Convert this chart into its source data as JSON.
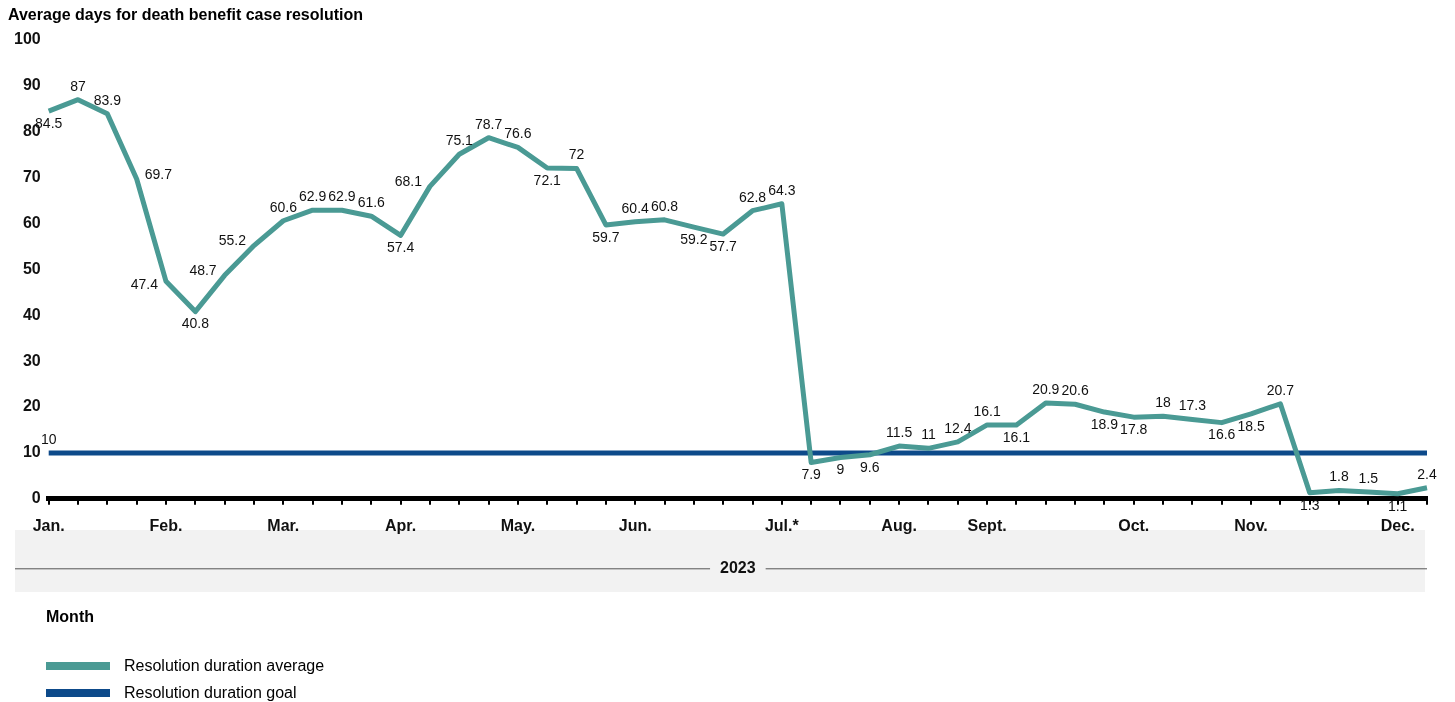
{
  "chart_data": {
    "type": "line",
    "title": "Average days for death benefit case resolution",
    "xlabel": "Month",
    "categories": [
      "Jan.",
      null,
      null,
      null,
      "Feb.",
      null,
      null,
      null,
      "Mar.",
      null,
      null,
      null,
      "Apr.",
      null,
      null,
      null,
      "May.",
      null,
      null,
      null,
      "Jun.",
      null,
      null,
      null,
      null,
      "Jul.*",
      null,
      null,
      null,
      "Aug.",
      null,
      null,
      "Sept.",
      null,
      null,
      null,
      null,
      "Oct.",
      null,
      null,
      null,
      "Nov.",
      null,
      null,
      null,
      null,
      "Dec.",
      null
    ],
    "series": [
      {
        "name": "Resolution duration average",
        "color": "#4a9a94",
        "values": [
          84.5,
          87,
          83.9,
          69.7,
          47.4,
          40.8,
          48.7,
          55.2,
          60.6,
          62.9,
          62.9,
          61.6,
          57.4,
          68.1,
          75.1,
          78.7,
          76.6,
          72.1,
          72,
          59.7,
          60.4,
          60.8,
          59.2,
          57.7,
          62.8,
          64.3,
          7.9,
          9,
          9.6,
          11.5,
          11,
          12.4,
          16.1,
          16.1,
          20.9,
          20.6,
          18.9,
          17.8,
          18,
          17.3,
          16.6,
          18.5,
          20.7,
          1.3,
          1.8,
          1.5,
          1.1,
          2.4
        ],
        "value_labels": [
          "84.5",
          "87",
          "83.9",
          "69.7",
          "47.4",
          "40.8",
          "48.7",
          "55.2",
          "60.6",
          "62.9",
          "62.9",
          "61.6",
          "57.4",
          "68.1",
          "75.1",
          "78.7",
          "76.6",
          "72.1",
          "72",
          "59.7",
          "60.4",
          "60.8",
          "59.2",
          "57.7",
          "62.8",
          "64.3",
          "7.9",
          "9",
          "9.6",
          "11.5",
          "11",
          "12.4",
          "16.1",
          "16.1",
          "20.9",
          "20.6",
          "18.9",
          "17.8",
          "18",
          "17.3",
          "16.6",
          "18.5",
          "20.7",
          "1.3",
          "1.8",
          "1.5",
          "1.1",
          "2.4"
        ]
      },
      {
        "name": "Resolution duration goal",
        "color": "#0d4a8a",
        "values": [
          10,
          10,
          10,
          10,
          10,
          10,
          10,
          10,
          10,
          10,
          10,
          10,
          10,
          10,
          10,
          10,
          10,
          10,
          10,
          10,
          10,
          10,
          10,
          10,
          10,
          10,
          10,
          10,
          10,
          10,
          10,
          10,
          10,
          10,
          10,
          10,
          10,
          10,
          10,
          10,
          10,
          10,
          10,
          10,
          10,
          10,
          10,
          10
        ],
        "value_labels": [
          "10",
          null,
          null,
          null,
          null,
          null,
          null,
          null,
          null,
          null,
          null,
          null,
          null,
          null,
          null,
          null,
          null,
          null,
          null,
          null,
          null,
          null,
          null,
          null,
          null,
          null,
          null,
          null,
          null,
          null,
          null,
          null,
          null,
          null,
          null,
          null,
          null,
          null,
          null,
          null,
          null,
          null,
          null,
          null,
          null,
          null,
          null,
          null
        ]
      }
    ],
    "ylim": [
      0,
      100
    ],
    "yticks": [
      0,
      10,
      20,
      30,
      40,
      50,
      60,
      70,
      80,
      90,
      100
    ],
    "grid": false,
    "legend": "bottom left",
    "annotations": [
      "2023"
    ]
  }
}
